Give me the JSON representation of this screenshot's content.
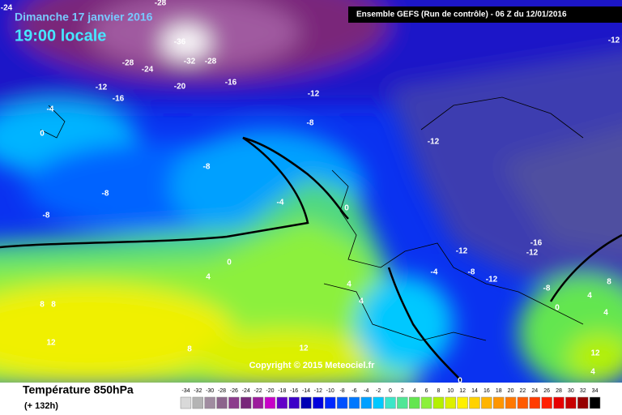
{
  "header": {
    "date": "Dimanche 17 janvier 2016",
    "time": "19:00 locale",
    "model": "Ensemble GEFS  (Run de contrôle)  -  06 Z du 12/01/2016"
  },
  "map": {
    "copyright": "Copyright © 2015 Meteociel.fr",
    "contour_labels": [
      -24,
      -28,
      -36,
      -28,
      -24,
      -32,
      -28,
      -20,
      -16,
      -12,
      -16,
      -12,
      -4,
      0,
      -8,
      -12,
      -8,
      -8,
      -8,
      -4,
      0,
      0,
      4,
      -12,
      -16,
      -12,
      -4,
      -8,
      -12,
      4,
      4,
      -8,
      0,
      4,
      8,
      4,
      8,
      8,
      12,
      8,
      12,
      12,
      4,
      0,
      -12
    ]
  },
  "footer": {
    "variable": "Température 850hPa",
    "lead": "(+ 132h)"
  },
  "legend": {
    "values": [
      -34,
      -32,
      -30,
      -28,
      -26,
      -24,
      -22,
      -20,
      -18,
      -16,
      -14,
      -12,
      -10,
      -8,
      -6,
      -4,
      -2,
      0,
      2,
      4,
      6,
      8,
      10,
      12,
      14,
      16,
      18,
      20,
      22,
      24,
      26,
      28,
      30,
      32,
      34
    ],
    "colors": [
      "#d9d9d9",
      "#b4b4b4",
      "#a08ca0",
      "#8c648c",
      "#8c3c8c",
      "#78287a",
      "#9c1c9c",
      "#c800c8",
      "#6400c8",
      "#3c00c8",
      "#0000b4",
      "#0000dc",
      "#0028ff",
      "#0050ff",
      "#0078ff",
      "#00a0ff",
      "#00c8ff",
      "#3ce6c8",
      "#50e696",
      "#64e650",
      "#8cf03c",
      "#b4f000",
      "#dcf000",
      "#fff000",
      "#ffd200",
      "#ffb400",
      "#ff9600",
      "#ff7800",
      "#ff5a00",
      "#ff3c00",
      "#ff1e00",
      "#e60000",
      "#c80000",
      "#960000",
      "#000000"
    ]
  }
}
